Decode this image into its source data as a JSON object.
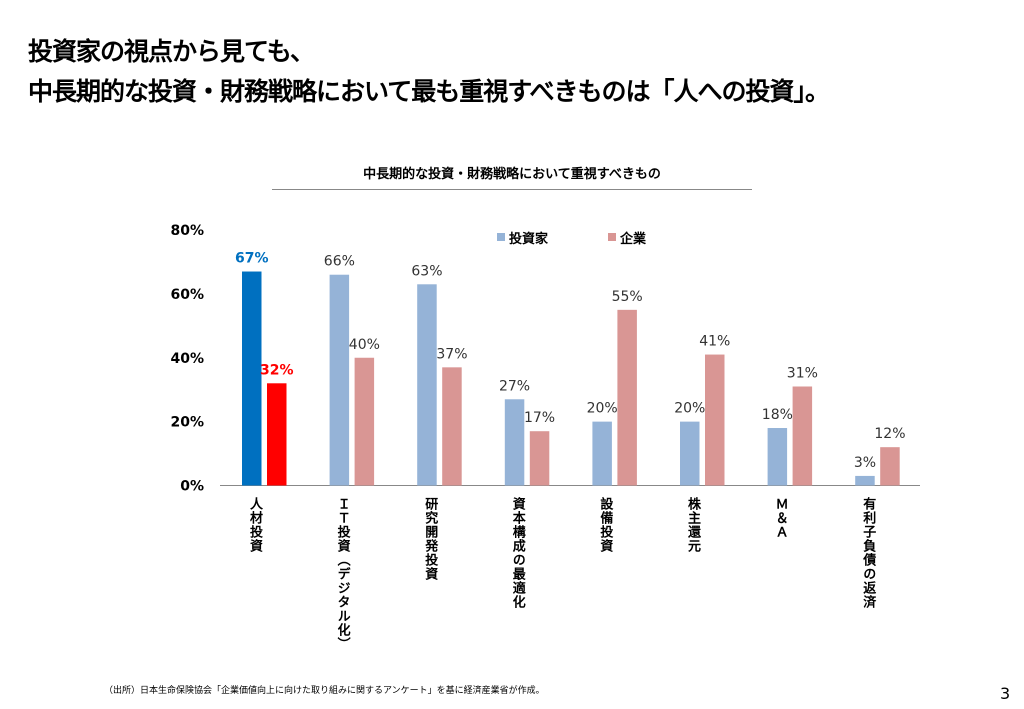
{
  "slide": {
    "title_line1": "投資家の視点から見ても、",
    "title_line2": "中長期的な投資・財務戦略において最も重視すべきものは「人への投資」。",
    "source": "（出所）日本生命保険協会「企業価値向上に向けた取り組みに関するアンケート」を基に経済産業省が作成。",
    "page_number": "3"
  },
  "chart_data": {
    "type": "bar",
    "title": "中長期的な投資・財務戦略において重視すべきもの",
    "categories": [
      "人材投資",
      "ＩＴ投資（デジタル化）",
      "研究開発投資",
      "資本構成の最適化",
      "設備投資",
      "株主還元",
      "Ｍ＆Ａ",
      "有利子負債の返済"
    ],
    "series": [
      {
        "name": "投資家",
        "values": [
          67,
          66,
          63,
          27,
          20,
          20,
          18,
          3
        ],
        "color": "#95B3D7",
        "highlight_color": "#0070C0"
      },
      {
        "name": "企業",
        "values": [
          32,
          40,
          37,
          17,
          55,
          41,
          31,
          12
        ],
        "color": "#D99694",
        "highlight_color": "#FF0000"
      }
    ],
    "highlight_category_index": 0,
    "yticks": [
      "0%",
      "20%",
      "40%",
      "60%",
      "80%"
    ],
    "ylim": [
      0,
      80
    ],
    "legend": "top-center",
    "grid": false,
    "xlabel": "",
    "ylabel": ""
  }
}
